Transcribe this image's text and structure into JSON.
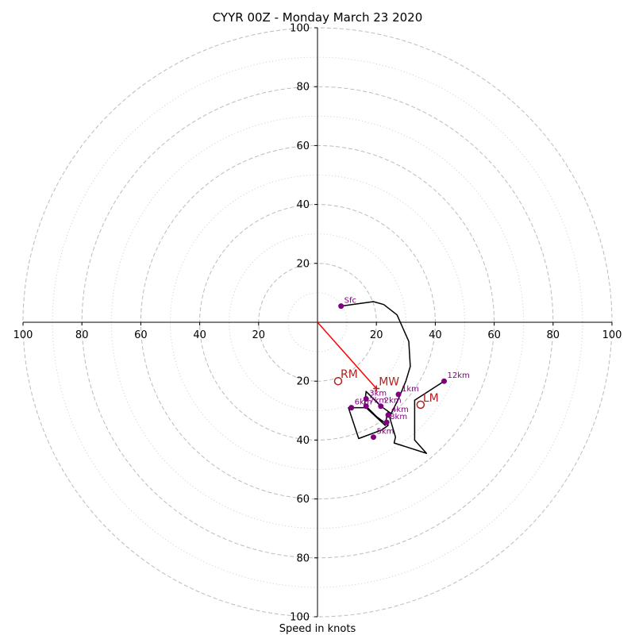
{
  "chart_data": {
    "type": "scatter",
    "title": "CYYR 00Z - Monday March 23 2020",
    "xlabel": "Speed in knots",
    "ylabel": "",
    "units": "knots",
    "xlim": [
      -100,
      100
    ],
    "ylim": [
      -100,
      100
    ],
    "rings": {
      "major": [
        20,
        40,
        60,
        80,
        100
      ],
      "minor": [
        10,
        30,
        50,
        70,
        90
      ]
    },
    "axis_ticks": [
      {
        "pos": -100,
        "label": "100"
      },
      {
        "pos": -80,
        "label": "80"
      },
      {
        "pos": -60,
        "label": "60"
      },
      {
        "pos": -40,
        "label": "40"
      },
      {
        "pos": -20,
        "label": "20"
      },
      {
        "pos": 20,
        "label": "20"
      },
      {
        "pos": 40,
        "label": "40"
      },
      {
        "pos": 60,
        "label": "60"
      },
      {
        "pos": 80,
        "label": "80"
      },
      {
        "pos": 100,
        "label": "100"
      }
    ],
    "hodograph_trace": [
      [
        8,
        5.5
      ],
      [
        19,
        7
      ],
      [
        22.5,
        6
      ],
      [
        27,
        2.5
      ],
      [
        31,
        -6.5
      ],
      [
        31.5,
        -15
      ],
      [
        30,
        -20
      ],
      [
        27.5,
        -26
      ],
      [
        25,
        -31
      ],
      [
        21.5,
        -28.5
      ],
      [
        16.5,
        -23.5
      ],
      [
        16,
        -28
      ],
      [
        20,
        -32
      ],
      [
        24,
        -35
      ],
      [
        22,
        -36.5
      ],
      [
        14,
        -39.5
      ],
      [
        10.5,
        -29
      ],
      [
        16.5,
        -29
      ],
      [
        23,
        -35
      ],
      [
        23.5,
        -32
      ],
      [
        24,
        -30.5
      ],
      [
        26.5,
        -39
      ],
      [
        26,
        -41
      ],
      [
        37,
        -44.5
      ],
      [
        33,
        -40
      ],
      [
        33,
        -26.5
      ],
      [
        43,
        -20
      ]
    ],
    "height_markers": [
      {
        "label": "Sfc",
        "u": 8,
        "v": 5.5
      },
      {
        "label": "1km",
        "u": 27.5,
        "v": -24.5
      },
      {
        "label": "2km",
        "u": 21.5,
        "v": -28.5
      },
      {
        "label": "3km",
        "u": 16.5,
        "v": -26
      },
      {
        "label": "4km",
        "u": 24,
        "v": -31.5
      },
      {
        "label": "5km",
        "u": 19,
        "v": -39
      },
      {
        "label": "6km",
        "u": 11.5,
        "v": -29
      },
      {
        "label": "7km",
        "u": 16.5,
        "v": -28.5
      },
      {
        "label": "8km",
        "u": 23.5,
        "v": -34
      },
      {
        "label": "12km",
        "u": 43,
        "v": -20
      }
    ],
    "storm_motion": [
      {
        "label": "RM",
        "u": 7,
        "v": -20
      },
      {
        "label": "LM",
        "u": 35,
        "v": -28
      },
      {
        "label": "MW",
        "u": 20,
        "v": -22.5
      }
    ],
    "shear_vector": {
      "from": [
        0,
        0
      ],
      "to": [
        20,
        -22.5
      ]
    },
    "colors": {
      "trace": "#000000",
      "markers": "#800080",
      "storm_motion": "#b22222",
      "shear_vector": "#ff0000",
      "rings": "#bbbbbb"
    }
  }
}
